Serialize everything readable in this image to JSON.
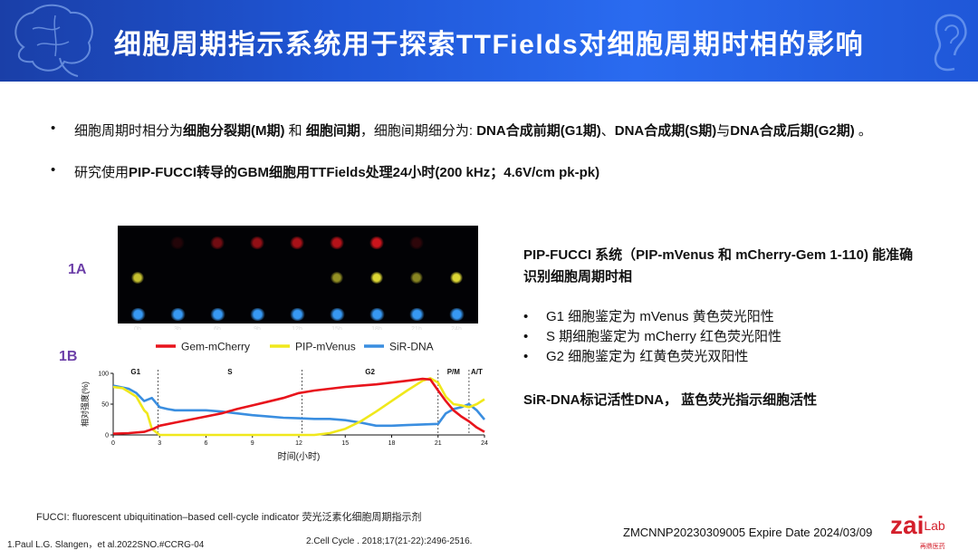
{
  "header": {
    "title": "细胞周期指示系统用于探索TTFields对细胞周期时相的影响"
  },
  "bullets": [
    {
      "symbol": "•",
      "parts": [
        {
          "t": "细胞周期时相分为",
          "b": false
        },
        {
          "t": "细胞分裂期(M期)",
          "b": true
        },
        {
          "t": " 和 ",
          "b": false
        },
        {
          "t": "细胞间期",
          "b": true
        },
        {
          "t": "，细胞间期细分为: ",
          "b": false
        },
        {
          "t": "DNA合成前期(G1期)",
          "b": true
        },
        {
          "t": "、",
          "b": false
        },
        {
          "t": "DNA合成期(S期)",
          "b": true
        },
        {
          "t": "与",
          "b": false
        },
        {
          "t": "DNA合成后期(G2期)",
          "b": true
        },
        {
          "t": " 。",
          "b": false
        }
      ]
    },
    {
      "symbol": "•",
      "parts": [
        {
          "t": "研究使用",
          "b": false
        },
        {
          "t": "PIP-FUCCI转导的GBM细胞用TTFields处理24小时(200 kHz；4.6V/cm pk-pk)",
          "b": true
        }
      ]
    }
  ],
  "figure": {
    "label_1a": "1A",
    "label_1b": "1B",
    "micro_time_labels": [
      "0h",
      "3h",
      "6h",
      "9h",
      "12h",
      "15h",
      "18h",
      "21h",
      "24h"
    ],
    "legend": [
      {
        "name": "Gem-mCherry",
        "color": "#e8141c"
      },
      {
        "name": "PIP-mVenus",
        "color": "#f0e81c"
      },
      {
        "name": "SiR-DNA",
        "color": "#3a8ee0"
      }
    ]
  },
  "chart_data": {
    "type": "line",
    "xlabel": "时间(小时)",
    "ylabel": "相对强度(%)",
    "xlim": [
      0,
      24
    ],
    "ylim": [
      0,
      100
    ],
    "x_ticks": [
      0,
      3,
      6,
      9,
      12,
      15,
      18,
      21,
      24
    ],
    "y_ticks": [
      0,
      50,
      100
    ],
    "phases": [
      {
        "label": "G1",
        "start": 0,
        "end": 2.9
      },
      {
        "label": "S",
        "start": 2.9,
        "end": 12.2
      },
      {
        "label": "G2",
        "start": 12.2,
        "end": 21
      },
      {
        "label": "P/M",
        "start": 21,
        "end": 23
      },
      {
        "label": "A/T",
        "start": 23,
        "end": 24
      }
    ],
    "series": [
      {
        "name": "Gem-mCherry",
        "color": "#e8141c",
        "x": [
          0,
          1,
          2,
          2.6,
          3,
          4,
          5,
          6,
          7,
          8,
          9,
          10,
          11,
          12,
          13,
          14,
          15,
          16,
          17,
          18,
          19,
          20,
          20.5,
          21,
          21.5,
          22,
          22.5,
          23,
          23.5,
          24
        ],
        "y": [
          2,
          3,
          5,
          10,
          15,
          20,
          25,
          30,
          35,
          42,
          48,
          54,
          60,
          68,
          72,
          75,
          78,
          80,
          82,
          85,
          88,
          91,
          90,
          72,
          55,
          40,
          30,
          22,
          12,
          5
        ]
      },
      {
        "name": "PIP-mVenus",
        "color": "#f0e81c",
        "x": [
          0,
          0.6,
          1,
          1.5,
          2,
          2.2,
          2.5,
          3,
          4,
          6,
          8,
          10,
          12,
          13,
          14,
          15,
          16,
          17,
          18,
          19,
          20,
          20.5,
          21,
          21.5,
          22,
          22.5,
          23,
          23.5,
          24
        ],
        "y": [
          78,
          76,
          70,
          62,
          40,
          35,
          10,
          0,
          0,
          0,
          0,
          0,
          0,
          0,
          3,
          10,
          22,
          38,
          55,
          72,
          88,
          92,
          85,
          62,
          50,
          48,
          45,
          50,
          58
        ]
      },
      {
        "name": "SiR-DNA",
        "color": "#3a8ee0",
        "x": [
          0,
          1,
          1.5,
          2,
          2.5,
          3,
          3.5,
          4,
          5,
          6,
          7,
          8,
          9,
          10,
          11,
          12,
          13,
          14,
          15,
          16,
          17,
          18,
          19,
          20,
          21,
          21.5,
          22,
          22.5,
          23,
          23.5,
          24
        ],
        "y": [
          80,
          75,
          68,
          55,
          60,
          45,
          42,
          40,
          40,
          40,
          38,
          35,
          32,
          30,
          28,
          27,
          26,
          26,
          24,
          20,
          15,
          15,
          16,
          17,
          18,
          35,
          42,
          45,
          50,
          40,
          25
        ]
      }
    ]
  },
  "right_panel": {
    "title_line1": "PIP-FUCCI 系统（PIP-mVenus 和 mCherry-Gem 1-110) 能准确",
    "title_line2": "识别细胞周期时相",
    "items": [
      {
        "symbol": "•",
        "text": "G1 细胞鉴定为 mVenus 黄色荧光阳性"
      },
      {
        "symbol": "•",
        "text": "S 期细胞鉴定为 mCherry 红色荧光阳性"
      },
      {
        "symbol": "•",
        "text": "G2 细胞鉴定为 红黄色荧光双阳性"
      }
    ],
    "sir_text": "SiR-DNA标记活性DNA，  蓝色荧光指示细胞活性"
  },
  "footer": {
    "fucci_note": "FUCCI: fluorescent ubiquitination–based cell-cycle indicator 荧光泛素化细胞周期指示剂",
    "ref1": "1.Paul L.G. Slangen，et al.2022SNO.#CCRG-04",
    "ref2": "2.Cell Cycle . 2018;17(21-22):2496-2516.",
    "code": "ZMCNNP20230309005 Expire Date 2024/03/09",
    "logo_text": "zai",
    "logo_sub": "Lab",
    "logo_cn": "再鼎医药"
  }
}
